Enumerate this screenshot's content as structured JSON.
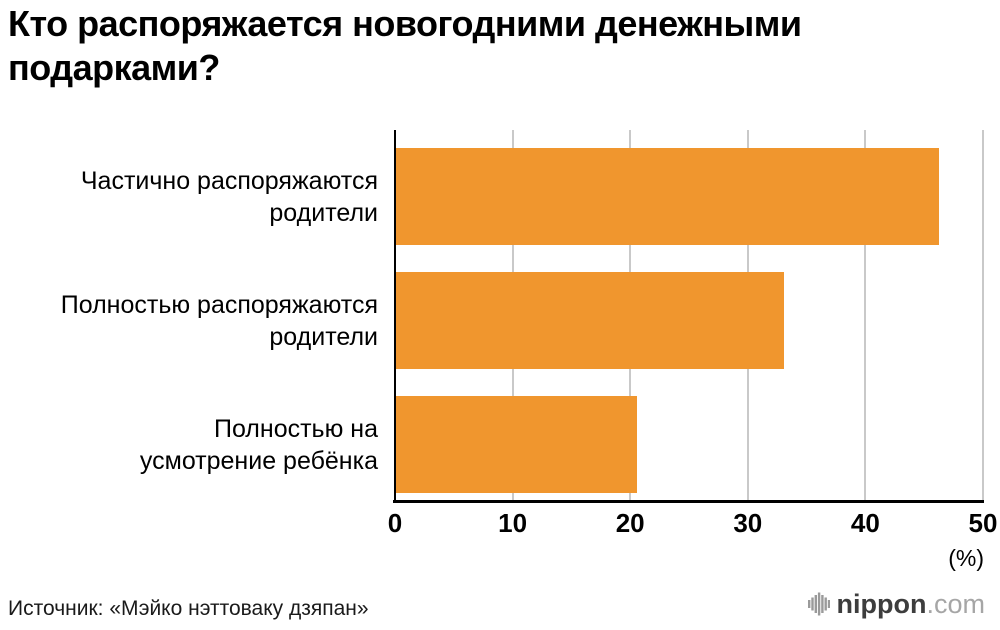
{
  "chart_data": {
    "type": "bar",
    "orientation": "horizontal",
    "title": "Кто распоряжается новогодними денежными подарками?",
    "categories": [
      "Частично распоряжаются родители",
      "Полностью распоряжаются родители",
      "Полностью на усмотрение ребёнка"
    ],
    "category_lines": [
      [
        "Частично распоряжаются",
        "родители"
      ],
      [
        "Полностью распоряжаются",
        "родители"
      ],
      [
        "Полностью на",
        "усмотрение ребёнка"
      ]
    ],
    "values": [
      46.2,
      33,
      20.5
    ],
    "bar_color": "#f0962e",
    "xlabel": "",
    "ylabel": "",
    "xlim": [
      0,
      50
    ],
    "xticks": [
      0,
      10,
      20,
      30,
      40,
      50
    ],
    "x_unit_label": "(%)",
    "grid": true,
    "legend": "none"
  },
  "footer": {
    "source": "Источник: «Мэйко нэттоваку дзяпан»",
    "logo_name": "nippon",
    "logo_suffix": ".com"
  }
}
